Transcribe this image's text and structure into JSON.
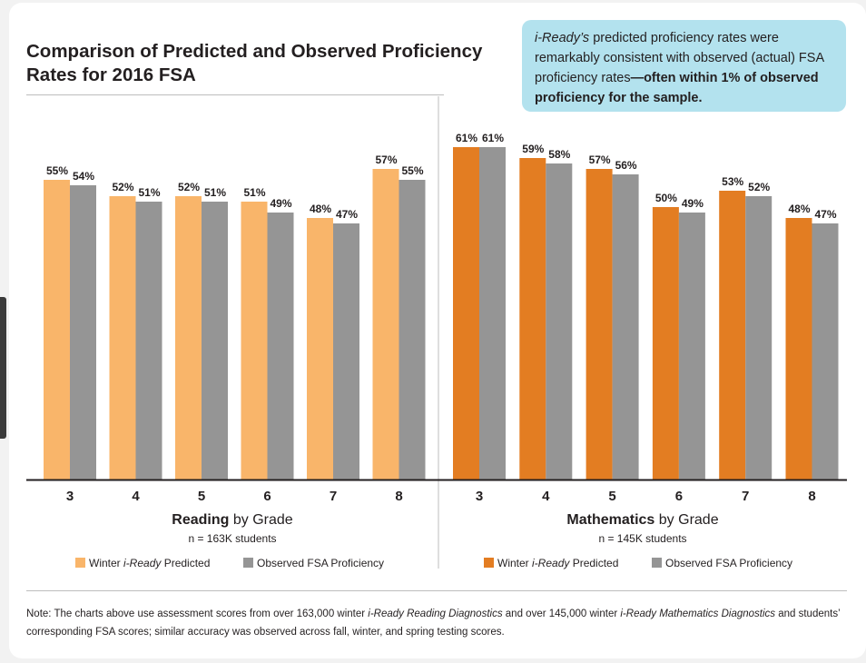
{
  "title": "Comparison of Predicted and Observed Proficiency Rates for 2016 FSA",
  "callout": {
    "part1": "i-Ready’s",
    "part2": " predicted proficiency rates were remarkably consistent with observed (actual) FSA proficiency rates",
    "part3": "—often within 1% of observed proficiency for the sample."
  },
  "note": {
    "p1": "Note: The charts above use assessment scores from over 163,000 winter ",
    "p2": "i-Ready Reading Diagnostics",
    "p3": " and over 145,000 winter ",
    "p4": "i-Ready Mathematics Diagnostics",
    "p5": " and students’ corresponding FSA scores; similar accuracy was observed across fall, winter, and spring testing scores."
  },
  "chart_data": [
    {
      "type": "bar",
      "subject_bold": "Reading",
      "subject_rest": " by Grade",
      "sample": "n = 163K students",
      "categories": [
        "3",
        "4",
        "5",
        "6",
        "7",
        "8"
      ],
      "series": [
        {
          "name_prefix": "Winter ",
          "name_italic": "i-Ready",
          "name_suffix": " Predicted",
          "color": "#f9b56a",
          "values": [
            55,
            52,
            52,
            51,
            48,
            57
          ]
        },
        {
          "name_prefix": "Observed FSA Proficiency",
          "name_italic": "",
          "name_suffix": "",
          "color": "#959595",
          "values": [
            54,
            51,
            51,
            49,
            47,
            55
          ]
        }
      ],
      "ylim": [
        0,
        100
      ]
    },
    {
      "type": "bar",
      "subject_bold": "Mathematics",
      "subject_rest": " by Grade",
      "sample": "n = 145K students",
      "categories": [
        "3",
        "4",
        "5",
        "6",
        "7",
        "8"
      ],
      "series": [
        {
          "name_prefix": "Winter ",
          "name_italic": "i-Ready",
          "name_suffix": " Predicted",
          "color": "#e37d22",
          "values": [
            61,
            59,
            57,
            50,
            53,
            48
          ]
        },
        {
          "name_prefix": "Observed FSA Proficiency",
          "name_italic": "",
          "name_suffix": "",
          "color": "#959595",
          "values": [
            61,
            58,
            56,
            49,
            52,
            47
          ]
        }
      ],
      "ylim": [
        0,
        100
      ]
    }
  ]
}
